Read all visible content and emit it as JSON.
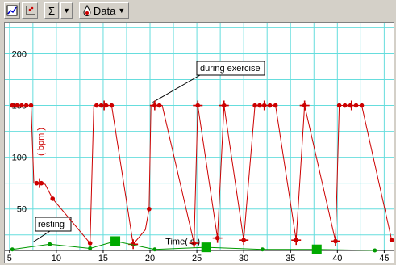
{
  "toolbar": {
    "sigma_label": "Σ",
    "data_label": "Data",
    "icons": [
      "chart-options-icon",
      "axes-icon",
      "sigma-icon",
      "dropdown-icon",
      "data-drop-icon"
    ]
  },
  "colors": {
    "grid": "#66dddd",
    "exercise_series": "#cc0000",
    "resting_series": "#009900",
    "resting_marker": "#00aa00"
  },
  "chart_data": {
    "type": "line",
    "title": "",
    "xlabel": "Time( s )",
    "ylabel": "( bpm )",
    "xlim": [
      4.5,
      46
    ],
    "ylim": [
      10,
      230
    ],
    "xticks": [
      5,
      10,
      15,
      20,
      25,
      30,
      35,
      40,
      45
    ],
    "yticks": [
      50,
      100,
      150,
      200
    ],
    "grid": true,
    "series": [
      {
        "values": [
          {
            "x": 5.3,
            "y": 150
          },
          {
            "x": 7.3,
            "y": 150
          },
          {
            "x": 7.6,
            "y": 75
          },
          {
            "x": 8.8,
            "y": 74
          },
          {
            "x": 9.6,
            "y": 60
          },
          {
            "x": 13.6,
            "y": 17
          },
          {
            "x": 14,
            "y": 150
          },
          {
            "x": 15.9,
            "y": 150
          },
          {
            "x": 18.2,
            "y": 16
          },
          {
            "x": 19.5,
            "y": 30
          },
          {
            "x": 19.9,
            "y": 50
          },
          {
            "x": 20.1,
            "y": 150
          },
          {
            "x": 21.3,
            "y": 150
          },
          {
            "x": 24.7,
            "y": 17
          },
          {
            "x": 25.1,
            "y": 150
          },
          {
            "x": 27.2,
            "y": 22
          },
          {
            "x": 27.9,
            "y": 150
          },
          {
            "x": 30,
            "y": 20
          },
          {
            "x": 31.2,
            "y": 150
          },
          {
            "x": 33.4,
            "y": 150
          },
          {
            "x": 35.6,
            "y": 20
          },
          {
            "x": 36.5,
            "y": 150
          },
          {
            "x": 39.8,
            "y": 19
          },
          {
            "x": 40.2,
            "y": 150
          },
          {
            "x": 42.6,
            "y": 150
          },
          {
            "x": 45.8,
            "y": 20
          }
        ],
        "markers": [
          {
            "x": 5.3,
            "y": 150
          },
          {
            "x": 5.8,
            "y": 150
          },
          {
            "x": 6.3,
            "y": 150
          },
          {
            "x": 6.8,
            "y": 150
          },
          {
            "x": 7.3,
            "y": 150
          },
          {
            "x": 7.9,
            "y": 75
          },
          {
            "x": 8.4,
            "y": 75
          },
          {
            "x": 9.6,
            "y": 60
          },
          {
            "x": 13.6,
            "y": 17
          },
          {
            "x": 14.3,
            "y": 150
          },
          {
            "x": 14.8,
            "y": 150
          },
          {
            "x": 15.3,
            "y": 150
          },
          {
            "x": 15.9,
            "y": 150
          },
          {
            "x": 18.2,
            "y": 16
          },
          {
            "x": 19.9,
            "y": 50
          },
          {
            "x": 20.5,
            "y": 150
          },
          {
            "x": 21,
            "y": 150
          },
          {
            "x": 24.7,
            "y": 17
          },
          {
            "x": 25.1,
            "y": 150
          },
          {
            "x": 27.2,
            "y": 22
          },
          {
            "x": 27.9,
            "y": 150
          },
          {
            "x": 30,
            "y": 20
          },
          {
            "x": 31.2,
            "y": 150
          },
          {
            "x": 31.7,
            "y": 150
          },
          {
            "x": 32.2,
            "y": 150
          },
          {
            "x": 32.8,
            "y": 150
          },
          {
            "x": 33.4,
            "y": 150
          },
          {
            "x": 35.6,
            "y": 20
          },
          {
            "x": 36.5,
            "y": 150
          },
          {
            "x": 39.8,
            "y": 19
          },
          {
            "x": 40.2,
            "y": 150
          },
          {
            "x": 40.8,
            "y": 150
          },
          {
            "x": 41.4,
            "y": 150
          },
          {
            "x": 42,
            "y": 150
          },
          {
            "x": 42.6,
            "y": 150
          },
          {
            "x": 45.8,
            "y": 20
          }
        ],
        "cross_markers": [
          {
            "x": 8.2,
            "y": 75
          },
          {
            "x": 15.1,
            "y": 150
          },
          {
            "x": 18.2,
            "y": 16
          },
          {
            "x": 20.5,
            "y": 150
          },
          {
            "x": 24.7,
            "y": 17
          },
          {
            "x": 25.1,
            "y": 150
          },
          {
            "x": 27.2,
            "y": 22
          },
          {
            "x": 27.9,
            "y": 150
          },
          {
            "x": 30,
            "y": 20
          },
          {
            "x": 32.2,
            "y": 150
          },
          {
            "x": 35.6,
            "y": 20
          },
          {
            "x": 36.5,
            "y": 150
          },
          {
            "x": 39.8,
            "y": 19
          },
          {
            "x": 41.5,
            "y": 150
          }
        ]
      },
      {
        "values": [
          {
            "x": 5.3,
            "y": 11
          },
          {
            "x": 9.3,
            "y": 16
          },
          {
            "x": 13.6,
            "y": 12
          },
          {
            "x": 16.3,
            "y": 19
          },
          {
            "x": 20.5,
            "y": 11
          },
          {
            "x": 26,
            "y": 13
          },
          {
            "x": 32,
            "y": 11
          },
          {
            "x": 37.8,
            "y": 11
          },
          {
            "x": 44,
            "y": 10
          }
        ],
        "square_markers": [
          {
            "x": 16.3,
            "y": 19
          },
          {
            "x": 26,
            "y": 13
          },
          {
            "x": 37.8,
            "y": 11
          }
        ]
      }
    ],
    "annotations": [
      {
        "text": "during exercise",
        "points_to": {
          "x": 20.3,
          "y": 150
        }
      },
      {
        "text": "resting",
        "points_to": {
          "x": 7.5,
          "y": 18
        }
      }
    ]
  }
}
